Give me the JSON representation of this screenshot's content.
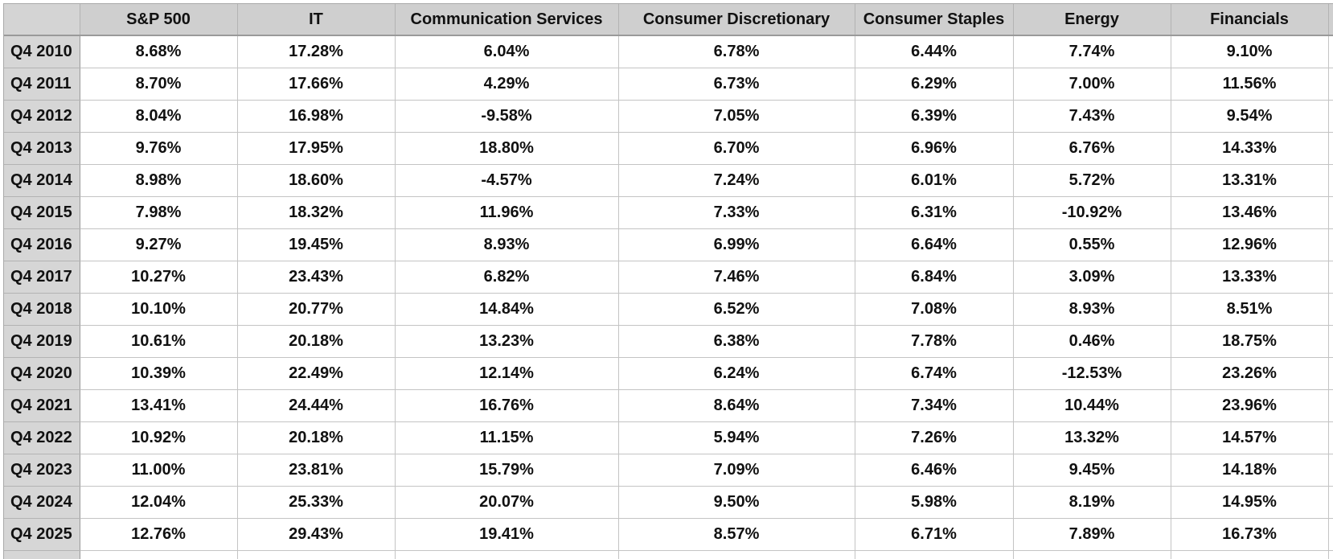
{
  "columns": [
    "S&P 500",
    "IT",
    "Communication Services",
    "Consumer Discretionary",
    "Consumer Staples",
    "Energy",
    "Financials"
  ],
  "rows": [
    {
      "label": "Q4 2010",
      "values": [
        "8.68%",
        "17.28%",
        "6.04%",
        "6.78%",
        "6.44%",
        "7.74%",
        "9.10%"
      ]
    },
    {
      "label": "Q4 2011",
      "values": [
        "8.70%",
        "17.66%",
        "4.29%",
        "6.73%",
        "6.29%",
        "7.00%",
        "11.56%"
      ]
    },
    {
      "label": "Q4 2012",
      "values": [
        "8.04%",
        "16.98%",
        "-9.58%",
        "7.05%",
        "6.39%",
        "7.43%",
        "9.54%"
      ]
    },
    {
      "label": "Q4 2013",
      "values": [
        "9.76%",
        "17.95%",
        "18.80%",
        "6.70%",
        "6.96%",
        "6.76%",
        "14.33%"
      ]
    },
    {
      "label": "Q4 2014",
      "values": [
        "8.98%",
        "18.60%",
        "-4.57%",
        "7.24%",
        "6.01%",
        "5.72%",
        "13.31%"
      ]
    },
    {
      "label": "Q4 2015",
      "values": [
        "7.98%",
        "18.32%",
        "11.96%",
        "7.33%",
        "6.31%",
        "-10.92%",
        "13.46%"
      ]
    },
    {
      "label": "Q4 2016",
      "values": [
        "9.27%",
        "19.45%",
        "8.93%",
        "6.99%",
        "6.64%",
        "0.55%",
        "12.96%"
      ]
    },
    {
      "label": "Q4 2017",
      "values": [
        "10.27%",
        "23.43%",
        "6.82%",
        "7.46%",
        "6.84%",
        "3.09%",
        "13.33%"
      ]
    },
    {
      "label": "Q4 2018",
      "values": [
        "10.10%",
        "20.77%",
        "14.84%",
        "6.52%",
        "7.08%",
        "8.93%",
        "8.51%"
      ]
    },
    {
      "label": "Q4 2019",
      "values": [
        "10.61%",
        "20.18%",
        "13.23%",
        "6.38%",
        "7.78%",
        "0.46%",
        "18.75%"
      ]
    },
    {
      "label": "Q4 2020",
      "values": [
        "10.39%",
        "22.49%",
        "12.14%",
        "6.24%",
        "6.74%",
        "-12.53%",
        "23.26%"
      ]
    },
    {
      "label": "Q4 2021",
      "values": [
        "13.41%",
        "24.44%",
        "16.76%",
        "8.64%",
        "7.34%",
        "10.44%",
        "23.96%"
      ]
    },
    {
      "label": "Q4 2022",
      "values": [
        "10.92%",
        "20.18%",
        "11.15%",
        "5.94%",
        "7.26%",
        "13.32%",
        "14.57%"
      ]
    },
    {
      "label": "Q4 2023",
      "values": [
        "11.00%",
        "23.81%",
        "15.79%",
        "7.09%",
        "6.46%",
        "9.45%",
        "14.18%"
      ]
    },
    {
      "label": "Q4 2024",
      "values": [
        "12.04%",
        "25.33%",
        "20.07%",
        "9.50%",
        "5.98%",
        "8.19%",
        "14.95%"
      ]
    },
    {
      "label": "Q4 2025",
      "values": [
        "12.76%",
        "29.43%",
        "19.41%",
        "8.57%",
        "6.71%",
        "7.89%",
        "16.73%"
      ]
    }
  ]
}
